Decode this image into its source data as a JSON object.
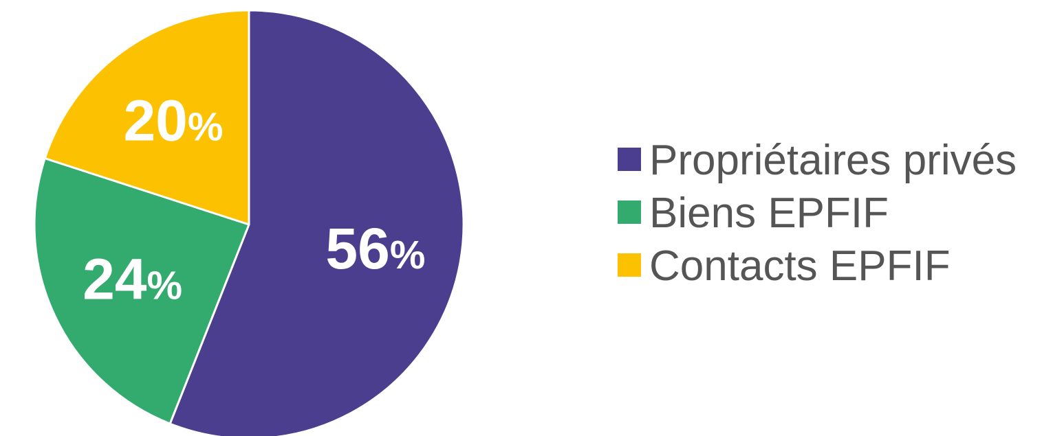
{
  "chart_data": {
    "type": "pie",
    "categories": [
      "Propriétaires privés",
      "Biens EPFIF",
      "Contacts EPFIF"
    ],
    "values": [
      56,
      24,
      20
    ],
    "value_suffix": "%",
    "colors": [
      "#4b3e8f",
      "#33ab6f",
      "#fcc100"
    ],
    "start": "top, clockwise",
    "legend_position": "right",
    "title": ""
  }
}
